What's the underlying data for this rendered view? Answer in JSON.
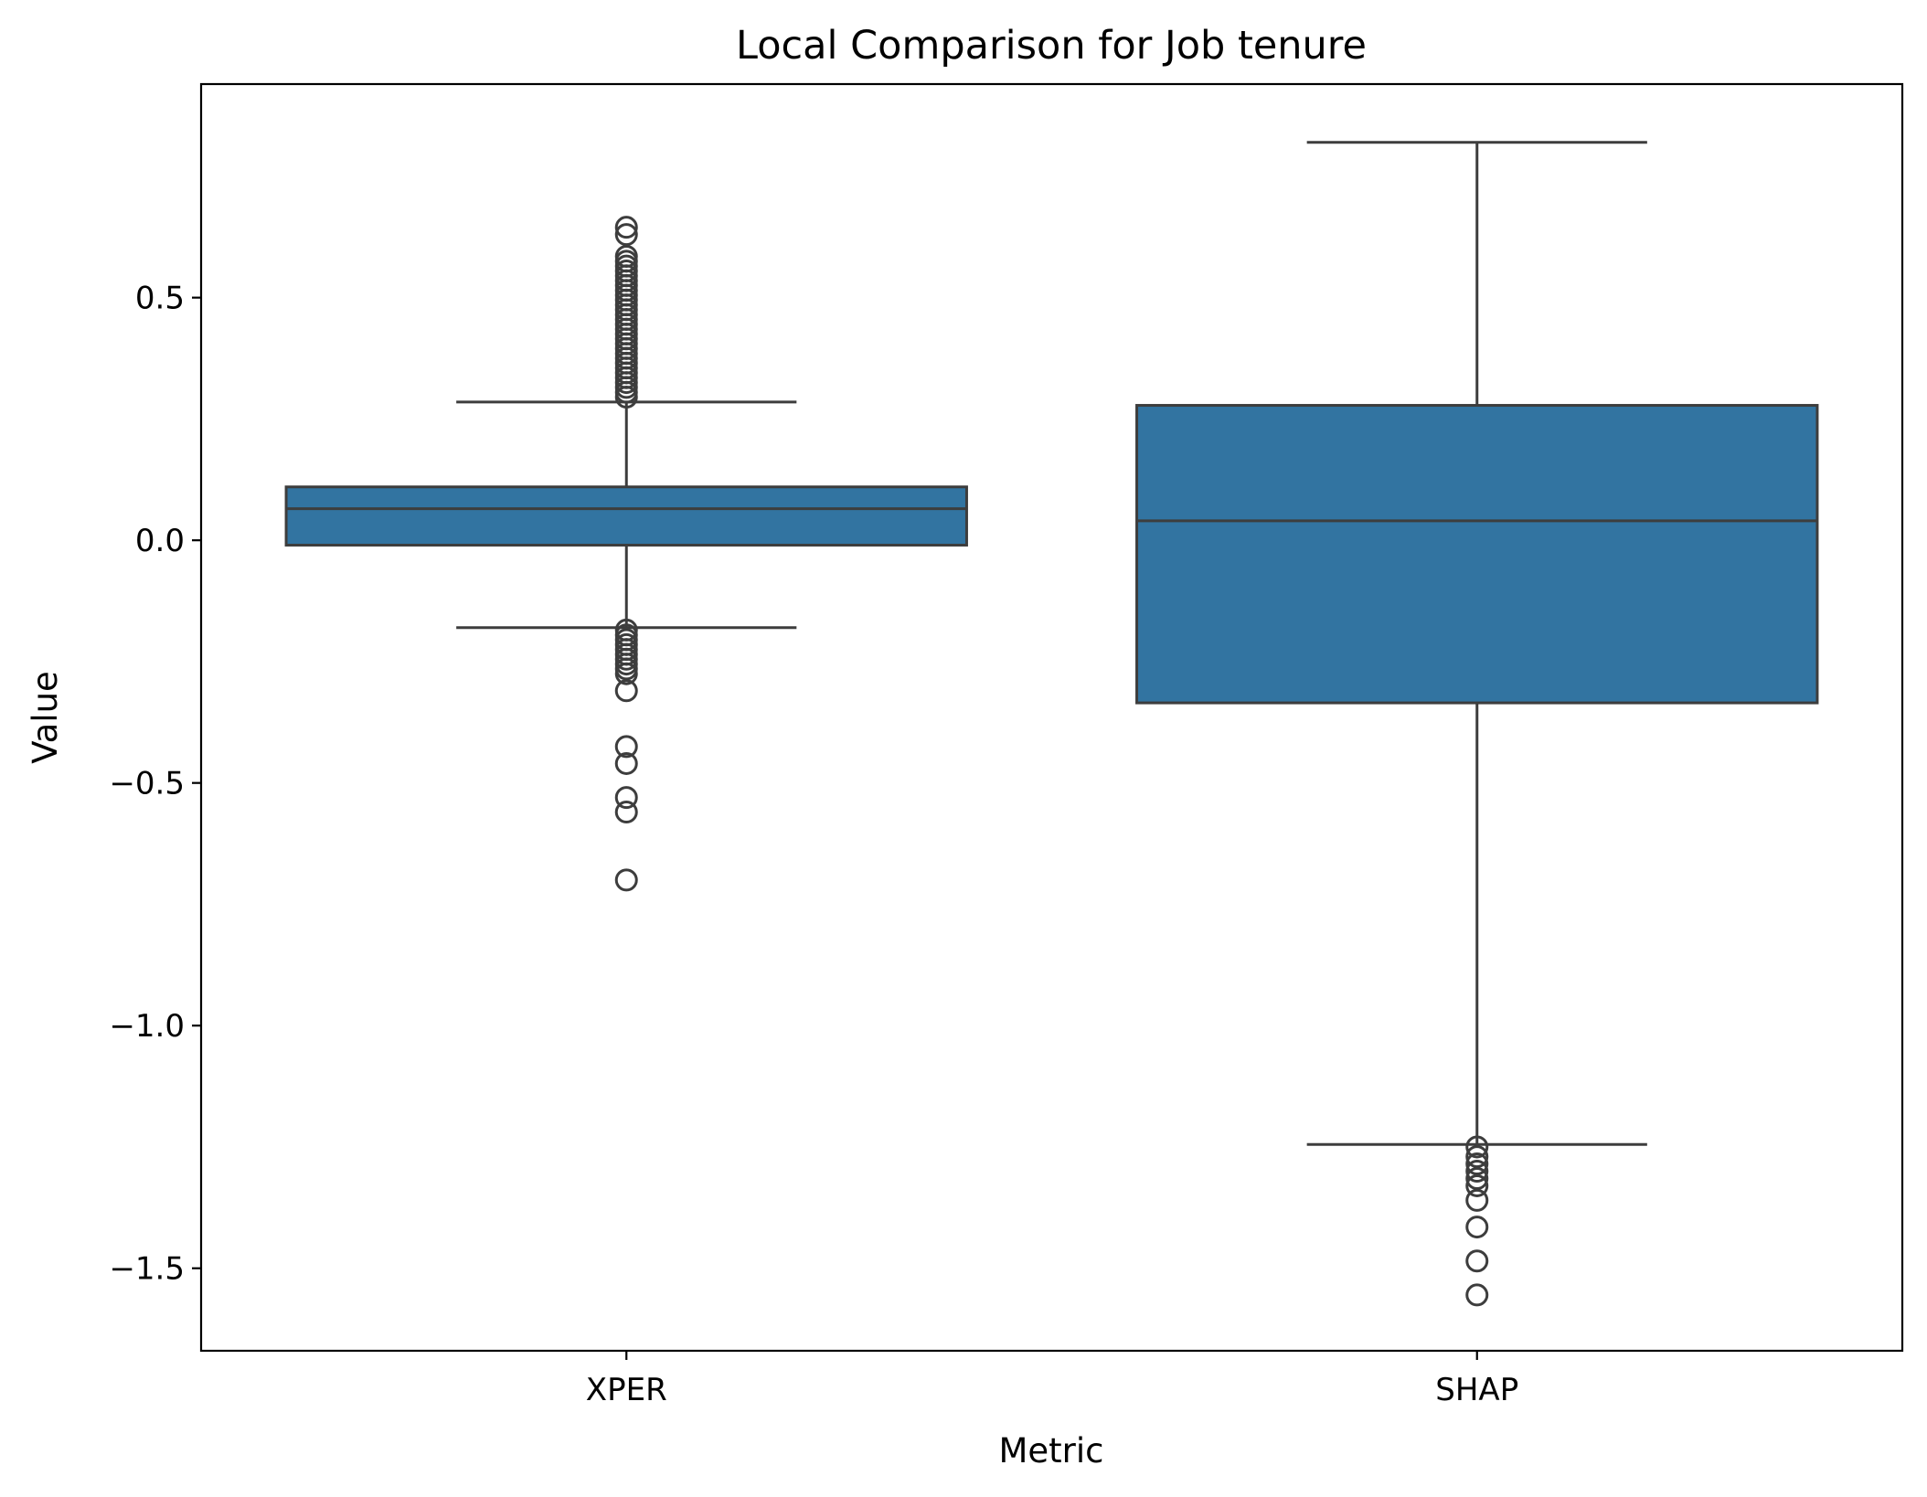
{
  "chart_data": {
    "type": "box",
    "title": "Local Comparison for Job tenure",
    "xlabel": "Metric",
    "ylabel": "Value",
    "ylim": [
      -1.67,
      0.94
    ],
    "yticks": [
      {
        "value": 0.5,
        "label": "0.5"
      },
      {
        "value": 0.0,
        "label": "0.0"
      },
      {
        "value": -0.5,
        "label": "−0.5"
      },
      {
        "value": -1.0,
        "label": "−1.0"
      },
      {
        "value": -1.5,
        "label": "−1.5"
      }
    ],
    "categories": [
      "XPER",
      "SHAP"
    ],
    "grid": false,
    "colors": {
      "box_fill": "#3274a1",
      "box_edge": "#3d3d3d",
      "axes": "#000000"
    },
    "boxes": [
      {
        "category": "XPER",
        "whisker_low": -0.18,
        "q1": -0.01,
        "median": 0.065,
        "q3": 0.11,
        "whisker_high": 0.285,
        "outliers": [
          0.645,
          0.63,
          0.585,
          0.575,
          0.565,
          0.555,
          0.545,
          0.535,
          0.525,
          0.515,
          0.505,
          0.495,
          0.485,
          0.475,
          0.465,
          0.455,
          0.445,
          0.435,
          0.425,
          0.415,
          0.405,
          0.395,
          0.385,
          0.375,
          0.365,
          0.355,
          0.345,
          0.335,
          0.325,
          0.315,
          0.305,
          0.295,
          -0.185,
          -0.195,
          -0.205,
          -0.215,
          -0.225,
          -0.235,
          -0.245,
          -0.255,
          -0.265,
          -0.275,
          -0.31,
          -0.425,
          -0.46,
          -0.53,
          -0.56,
          -0.7
        ]
      },
      {
        "category": "SHAP",
        "whisker_low": -1.245,
        "q1": -0.335,
        "median": 0.04,
        "q3": 0.278,
        "whisker_high": 0.82,
        "outliers": [
          -1.25,
          -1.27,
          -1.285,
          -1.3,
          -1.315,
          -1.33,
          -1.36,
          -1.415,
          -1.485,
          -1.555
        ]
      }
    ]
  }
}
